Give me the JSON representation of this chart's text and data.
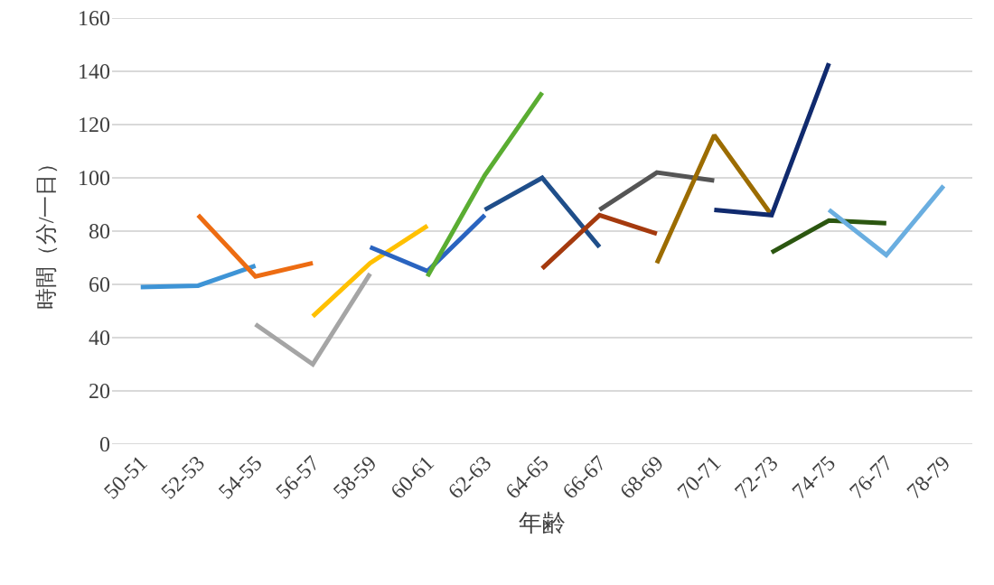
{
  "chart_data": {
    "type": "line",
    "xlabel": "年齢",
    "ylabel": "時間（分/一日）",
    "categories": [
      "50-51",
      "52-53",
      "54-55",
      "56-57",
      "58-59",
      "60-61",
      "62-63",
      "64-65",
      "66-67",
      "68-69",
      "70-71",
      "72-73",
      "74-75",
      "76-77",
      "78-79"
    ],
    "ylim": [
      0,
      160
    ],
    "yticks": [
      0,
      20,
      40,
      60,
      80,
      100,
      120,
      140,
      160
    ],
    "grid": "y",
    "marker": "none",
    "line_style": "solid",
    "series": [
      {
        "color": "#3e94d6",
        "values": [
          59,
          59.5,
          67,
          null,
          null,
          null,
          null,
          null,
          null,
          null,
          null,
          null,
          null,
          null,
          null
        ]
      },
      {
        "color": "#ed6c12",
        "values": [
          null,
          86,
          63,
          68,
          null,
          null,
          null,
          null,
          null,
          null,
          null,
          null,
          null,
          null,
          null
        ]
      },
      {
        "color": "#a5a5a5",
        "values": [
          null,
          null,
          45,
          30,
          64,
          null,
          null,
          null,
          null,
          null,
          null,
          null,
          null,
          null,
          null
        ]
      },
      {
        "color": "#ffc000",
        "values": [
          null,
          null,
          null,
          48,
          68,
          82,
          null,
          null,
          null,
          null,
          null,
          null,
          null,
          null,
          null
        ]
      },
      {
        "color": "#2a64c0",
        "values": [
          null,
          null,
          null,
          null,
          74,
          65,
          86,
          null,
          null,
          null,
          null,
          null,
          null,
          null,
          null
        ]
      },
      {
        "color": "#5aad32",
        "values": [
          null,
          null,
          null,
          null,
          null,
          63,
          101,
          132,
          null,
          null,
          null,
          null,
          null,
          null,
          null
        ]
      },
      {
        "color": "#1f4e8a",
        "values": [
          null,
          null,
          null,
          null,
          null,
          null,
          88,
          100,
          74,
          null,
          null,
          null,
          null,
          null,
          null
        ]
      },
      {
        "color": "#a53a0e",
        "values": [
          null,
          null,
          null,
          null,
          null,
          null,
          null,
          66,
          86,
          79,
          null,
          null,
          null,
          null,
          null
        ]
      },
      {
        "color": "#555555",
        "values": [
          null,
          null,
          null,
          null,
          null,
          null,
          null,
          null,
          88,
          102,
          99,
          null,
          null,
          null,
          null
        ]
      },
      {
        "color": "#9c6c00",
        "values": [
          null,
          null,
          null,
          null,
          null,
          null,
          null,
          null,
          null,
          68,
          116,
          86,
          null,
          null,
          null
        ]
      },
      {
        "color": "#102a6e",
        "values": [
          null,
          null,
          null,
          null,
          null,
          null,
          null,
          null,
          null,
          null,
          88,
          86,
          143,
          null,
          null
        ]
      },
      {
        "color": "#2b5610",
        "values": [
          null,
          null,
          null,
          null,
          null,
          null,
          null,
          null,
          null,
          null,
          null,
          72,
          84,
          83,
          null
        ]
      },
      {
        "color": "#6aaee0",
        "values": [
          null,
          null,
          null,
          null,
          null,
          null,
          null,
          null,
          null,
          null,
          null,
          null,
          88,
          71,
          97
        ]
      }
    ]
  }
}
